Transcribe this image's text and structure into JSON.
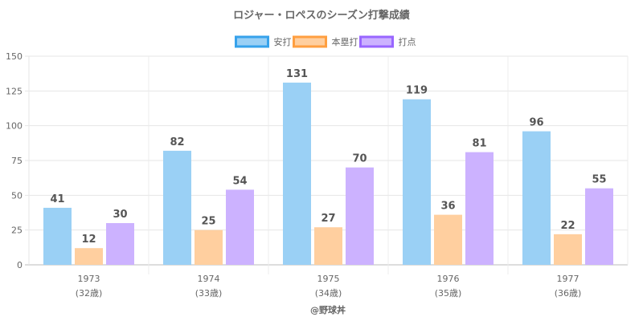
{
  "chart_data": {
    "type": "bar",
    "title": "ロジャー・ロペスのシーズン打撃成績",
    "categories": [
      "1973",
      "1974",
      "1975",
      "1976",
      "1977"
    ],
    "category_sublabels": [
      "(32歳)",
      "(33歳)",
      "(34歳)",
      "(35歳)",
      "(36歳)"
    ],
    "series": [
      {
        "name": "安打",
        "values": [
          41,
          82,
          131,
          119,
          96
        ],
        "fill": "#9ad0f5",
        "border": "#36a2eb"
      },
      {
        "name": "本塁打",
        "values": [
          12,
          25,
          27,
          36,
          22
        ],
        "fill": "#ffcf9f",
        "border": "#ff9f40"
      },
      {
        "name": "打点",
        "values": [
          30,
          54,
          70,
          81,
          55
        ],
        "fill": "#ccb2ff",
        "border": "#9966ff"
      }
    ],
    "yticks": [
      0,
      25,
      50,
      75,
      100,
      125,
      150
    ],
    "ylim": [
      0,
      150
    ],
    "xlabel": "",
    "ylabel": "",
    "grid": true,
    "legend_position": "top",
    "credit": "@野球丼"
  }
}
